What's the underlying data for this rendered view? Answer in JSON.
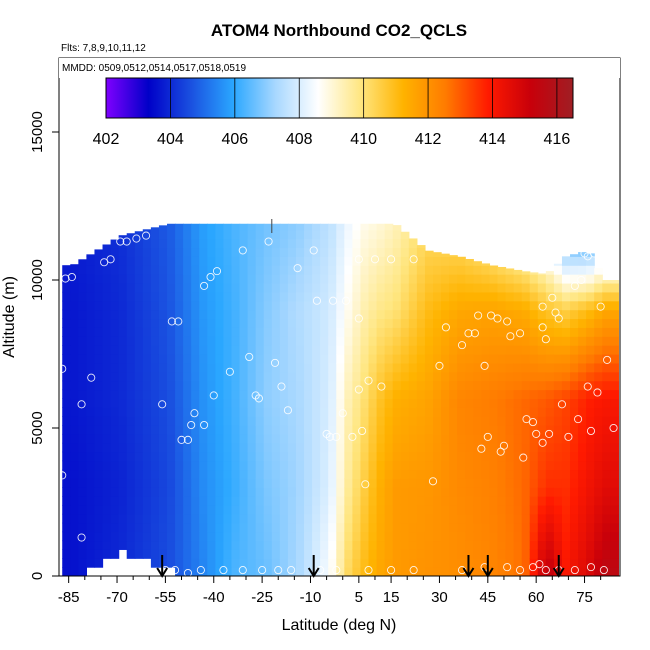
{
  "chart_data": {
    "type": "heatmap",
    "title": "ATOM4 Northbound CO2_QCLS",
    "subtitle_flights": "Flts: 7,8,9,10,11,12",
    "subtitle_dates": "MMDD: 0509,0512,0514,0517,0518,0519",
    "xlabel": "Latitude (deg N)",
    "ylabel": "Altitude (m)",
    "xlim": [
      -88,
      86
    ],
    "ylim": [
      0,
      17500
    ],
    "x_ticks": [
      -85,
      -70,
      -55,
      -40,
      -25,
      -10,
      5,
      15,
      30,
      45,
      60,
      75
    ],
    "y_ticks": [
      0,
      5000,
      10000,
      15000
    ],
    "colorbar": {
      "min": 402,
      "max": 416.5,
      "ticks": [
        402,
        404,
        406,
        408,
        410,
        412,
        414,
        416
      ],
      "colors": [
        "#7f00ff",
        "#0000c8",
        "#1a50e0",
        "#2aa7ff",
        "#a9d8ff",
        "#ffffff",
        "#ffe680",
        "#ffb300",
        "#ff7b00",
        "#ff1a00",
        "#c8000a",
        "#a01e24"
      ]
    },
    "field_profiles": [
      {
        "lat": -85,
        "top": 10500,
        "bottom": 0,
        "values": [
          403.8,
          403.7,
          403.7,
          403.6,
          403.6
        ]
      },
      {
        "lat": -70,
        "top": 11500,
        "bottom": 1000,
        "values": [
          404.1,
          404.0,
          404.0,
          403.9,
          404.0
        ]
      },
      {
        "lat": -55,
        "top": 11900,
        "bottom": 400,
        "values": [
          404.8,
          404.7,
          404.6,
          404.5,
          404.6
        ]
      },
      {
        "lat": -45,
        "top": 11900,
        "bottom": 0,
        "values": [
          405.8,
          405.7,
          405.6,
          405.5,
          405.4
        ]
      },
      {
        "lat": -35,
        "top": 11900,
        "bottom": 0,
        "values": [
          406.3,
          406.2,
          406.2,
          406.1,
          406.3
        ]
      },
      {
        "lat": -25,
        "top": 11900,
        "bottom": 0,
        "values": [
          406.7,
          406.9,
          407.0,
          406.8,
          406.6
        ]
      },
      {
        "lat": -15,
        "top": 11900,
        "bottom": 0,
        "values": [
          407.0,
          407.4,
          407.3,
          407.2,
          407.3
        ]
      },
      {
        "lat": -5,
        "top": 11900,
        "bottom": 0,
        "values": [
          407.6,
          407.9,
          408.0,
          408.1,
          408.6
        ]
      },
      {
        "lat": 0,
        "top": 11900,
        "bottom": 0,
        "values": [
          408.3,
          408.7,
          409.3,
          409.6,
          410.2
        ]
      },
      {
        "lat": 5,
        "top": 11900,
        "bottom": 0,
        "values": [
          408.8,
          409.4,
          410.0,
          410.5,
          411.0
        ]
      },
      {
        "lat": 10,
        "top": 11900,
        "bottom": 0,
        "values": [
          409.0,
          409.8,
          410.8,
          411.3,
          411.5
        ]
      },
      {
        "lat": 15,
        "top": 11900,
        "bottom": 0,
        "values": [
          409.3,
          410.0,
          411.3,
          411.8,
          411.8
        ]
      },
      {
        "lat": 25,
        "top": 11000,
        "bottom": 0,
        "values": [
          410.2,
          411.0,
          411.6,
          411.9,
          412.0
        ]
      },
      {
        "lat": 35,
        "top": 10800,
        "bottom": 0,
        "values": [
          410.0,
          411.5,
          412.3,
          412.2,
          412.1
        ]
      },
      {
        "lat": 45,
        "top": 10500,
        "bottom": 0,
        "values": [
          409.3,
          411.6,
          412.5,
          412.4,
          412.3
        ]
      },
      {
        "lat": 55,
        "top": 10300,
        "bottom": 0,
        "values": [
          408.5,
          411.4,
          412.8,
          412.8,
          412.7
        ]
      },
      {
        "lat": 62,
        "top": 10200,
        "bottom": 0,
        "values": [
          407.6,
          410.8,
          413.0,
          413.6,
          415.6
        ]
      },
      {
        "lat": 68,
        "top": 10800,
        "bottom": 0,
        "values": [
          405.4,
          410.5,
          413.3,
          413.6,
          414.0
        ]
      },
      {
        "lat": 75,
        "top": 11000,
        "bottom": 0,
        "values": [
          405.0,
          411.0,
          413.8,
          414.2,
          414.8
        ]
      },
      {
        "lat": 80,
        "top": 10000,
        "bottom": 0,
        "values": [
          406.0,
          411.5,
          414.0,
          414.6,
          415.6
        ]
      }
    ],
    "profile_levels": [
      11900,
      9000,
      6000,
      3000,
      0
    ],
    "sample_points": [
      [
        -86,
        10050
      ],
      [
        -84,
        10100
      ],
      [
        -87,
        7000
      ],
      [
        -87,
        3400
      ],
      [
        -81,
        5800
      ],
      [
        -78,
        6700
      ],
      [
        -81,
        1300
      ],
      [
        -74,
        10600
      ],
      [
        -72,
        10700
      ],
      [
        -69,
        11300
      ],
      [
        -67,
        11300
      ],
      [
        -64,
        11400
      ],
      [
        -61,
        11500
      ],
      [
        -56,
        5800
      ],
      [
        -53,
        8600
      ],
      [
        -51,
        8600
      ],
      [
        -50,
        4600
      ],
      [
        -48,
        4600
      ],
      [
        -47,
        5100
      ],
      [
        -46,
        5500
      ],
      [
        -43,
        5100
      ],
      [
        -43,
        9800
      ],
      [
        -41,
        10100
      ],
      [
        -40,
        6100
      ],
      [
        -39,
        10300
      ],
      [
        -35,
        6900
      ],
      [
        -31,
        11000
      ],
      [
        -29,
        7400
      ],
      [
        -27,
        6100
      ],
      [
        -26,
        6000
      ],
      [
        -23,
        11300
      ],
      [
        -21,
        7200
      ],
      [
        -19,
        6400
      ],
      [
        -17,
        5600
      ],
      [
        -14,
        10400
      ],
      [
        -9,
        11000
      ],
      [
        -8,
        9300
      ],
      [
        -5,
        4800
      ],
      [
        -4,
        4700
      ],
      [
        -3,
        9300
      ],
      [
        -2,
        4700
      ],
      [
        0,
        5500
      ],
      [
        1,
        9300
      ],
      [
        3,
        4700
      ],
      [
        5,
        6300
      ],
      [
        5,
        8700
      ],
      [
        5,
        10700
      ],
      [
        6,
        4900
      ],
      [
        7,
        3100
      ],
      [
        8,
        6600
      ],
      [
        10,
        10700
      ],
      [
        12,
        6400
      ],
      [
        15,
        10700
      ],
      [
        22,
        10700
      ],
      [
        28,
        3200
      ],
      [
        30,
        7100
      ],
      [
        32,
        8400
      ],
      [
        37,
        7800
      ],
      [
        39,
        8200
      ],
      [
        41,
        8200
      ],
      [
        42,
        8800
      ],
      [
        43,
        4300
      ],
      [
        44,
        7100
      ],
      [
        45,
        4700
      ],
      [
        46,
        8800
      ],
      [
        48,
        8700
      ],
      [
        49,
        4200
      ],
      [
        50,
        4400
      ],
      [
        51,
        8600
      ],
      [
        52,
        8100
      ],
      [
        55,
        8200
      ],
      [
        56,
        4000
      ],
      [
        57,
        5300
      ],
      [
        59,
        5200
      ],
      [
        60,
        4800
      ],
      [
        62,
        4500
      ],
      [
        62,
        9100
      ],
      [
        62,
        8400
      ],
      [
        63,
        8000
      ],
      [
        64,
        4800
      ],
      [
        65,
        9400
      ],
      [
        66,
        8900
      ],
      [
        67,
        8700
      ],
      [
        68,
        5800
      ],
      [
        70,
        4700
      ],
      [
        72,
        9800
      ],
      [
        73,
        5300
      ],
      [
        74,
        10000
      ],
      [
        75,
        10900
      ],
      [
        76,
        10800
      ],
      [
        76,
        6400
      ],
      [
        77,
        4900
      ],
      [
        78,
        10900
      ],
      [
        79,
        6200
      ],
      [
        80,
        9100
      ],
      [
        82,
        7300
      ],
      [
        84,
        5000
      ],
      [
        -55,
        200
      ],
      [
        -52,
        200
      ],
      [
        -48,
        100
      ],
      [
        -44,
        200
      ],
      [
        -37,
        200
      ],
      [
        -31,
        200
      ],
      [
        -25,
        200
      ],
      [
        -20,
        200
      ],
      [
        -16,
        200
      ],
      [
        -7,
        200
      ],
      [
        -2,
        200
      ],
      [
        8,
        200
      ],
      [
        15,
        200
      ],
      [
        22,
        200
      ],
      [
        37,
        200
      ],
      [
        44,
        300
      ],
      [
        51,
        300
      ],
      [
        55,
        200
      ],
      [
        59,
        300
      ],
      [
        61,
        400
      ],
      [
        63,
        200
      ],
      [
        67,
        200
      ],
      [
        72,
        200
      ],
      [
        77,
        300
      ],
      [
        81,
        200
      ]
    ],
    "arrows_lat": [
      -56,
      -9,
      39,
      45,
      67
    ],
    "top_marker_lat": -22
  }
}
